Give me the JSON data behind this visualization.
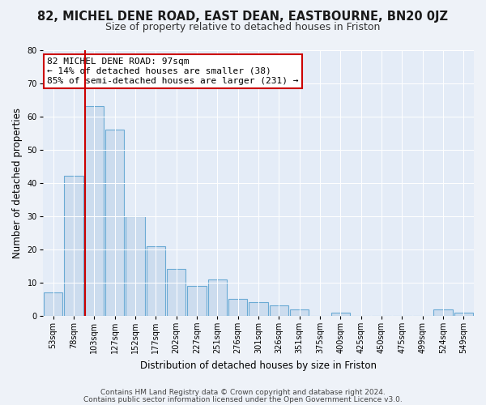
{
  "title": "82, MICHEL DENE ROAD, EAST DEAN, EASTBOURNE, BN20 0JZ",
  "subtitle": "Size of property relative to detached houses in Friston",
  "xlabel": "Distribution of detached houses by size in Friston",
  "ylabel": "Number of detached properties",
  "categories": [
    "53sqm",
    "78sqm",
    "103sqm",
    "127sqm",
    "152sqm",
    "177sqm",
    "202sqm",
    "227sqm",
    "251sqm",
    "276sqm",
    "301sqm",
    "326sqm",
    "351sqm",
    "375sqm",
    "400sqm",
    "425sqm",
    "450sqm",
    "475sqm",
    "499sqm",
    "524sqm",
    "549sqm"
  ],
  "values": [
    7,
    42,
    63,
    56,
    30,
    21,
    14,
    9,
    11,
    5,
    4,
    3,
    2,
    0,
    1,
    0,
    0,
    0,
    0,
    2,
    1
  ],
  "bar_color": "#ccdcee",
  "bar_edge_color": "#6aaad4",
  "highlight_line_color": "#cc0000",
  "highlight_index": 2,
  "annotation_text": "82 MICHEL DENE ROAD: 97sqm\n← 14% of detached houses are smaller (38)\n85% of semi-detached houses are larger (231) →",
  "annotation_box_color": "#ffffff",
  "annotation_box_edge": "#cc0000",
  "ylim": [
    0,
    80
  ],
  "yticks": [
    0,
    10,
    20,
    30,
    40,
    50,
    60,
    70,
    80
  ],
  "footer1": "Contains HM Land Registry data © Crown copyright and database right 2024.",
  "footer2": "Contains public sector information licensed under the Open Government Licence v3.0.",
  "bg_color": "#eef2f8",
  "plot_bg_color": "#e4ecf7",
  "title_fontsize": 10.5,
  "subtitle_fontsize": 9,
  "axis_label_fontsize": 8.5,
  "tick_fontsize": 7,
  "annotation_fontsize": 8,
  "footer_fontsize": 6.5
}
